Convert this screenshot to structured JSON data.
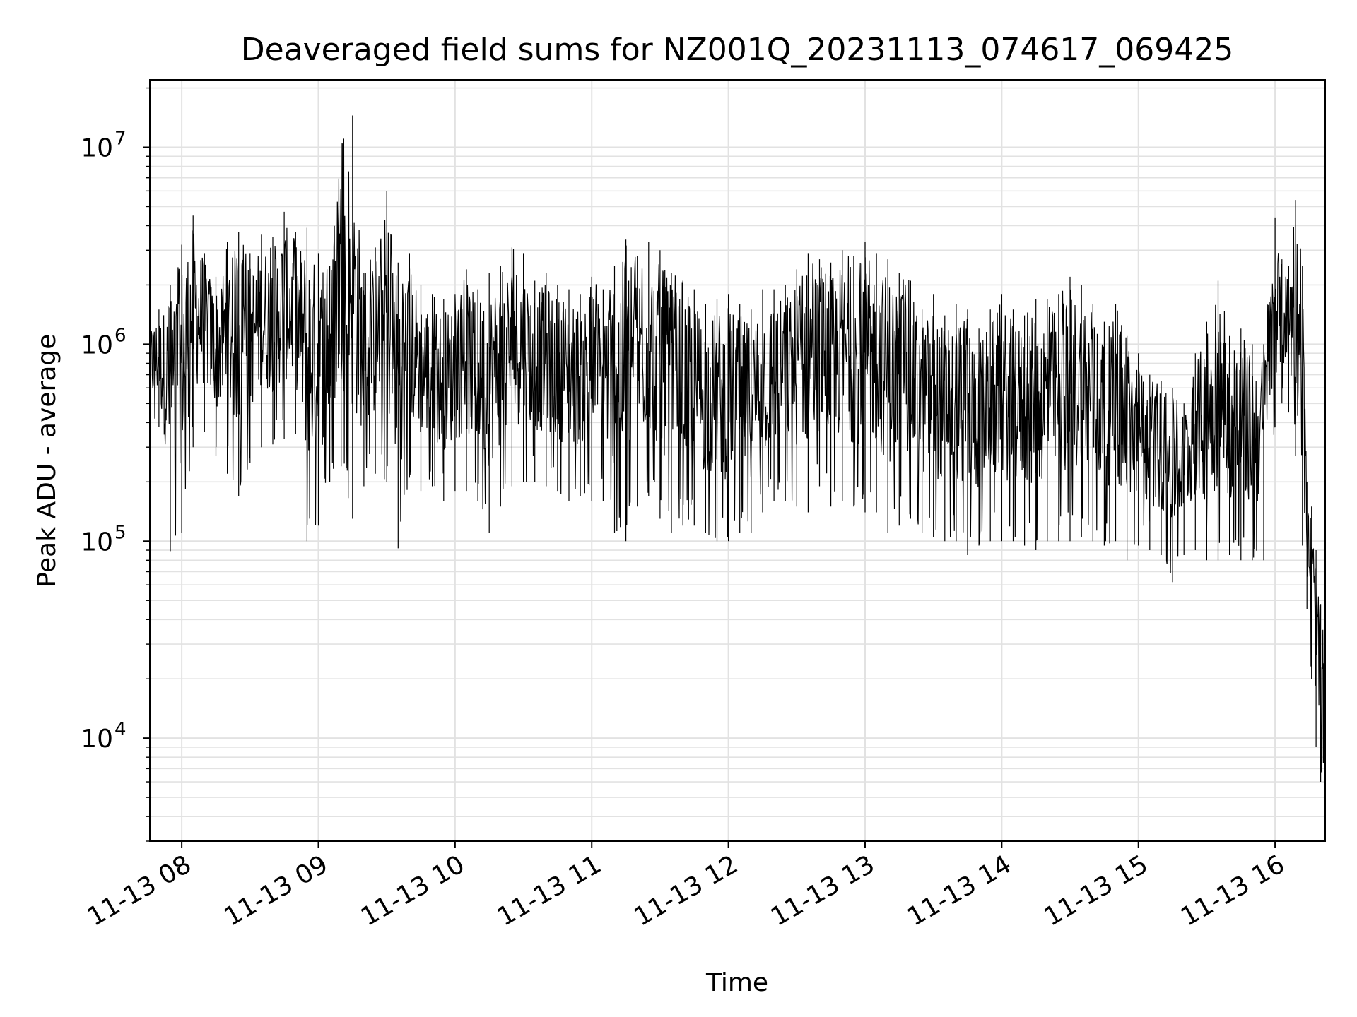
{
  "chart_data": {
    "type": "line",
    "title": "Deaveraged field sums for NZ001Q_20231113_074617_069425",
    "xlabel": "Time",
    "ylabel": "Peak ADU - average",
    "yscale": "log",
    "ylim": [
      3000,
      22000000
    ],
    "xlim": [
      "2023-11-13 07:46",
      "2023-11-13 16:22"
    ],
    "grid": true,
    "line_color": "#000000",
    "x_ticks": [
      {
        "value": "2023-11-13 08:00",
        "label": "11-13 08"
      },
      {
        "value": "2023-11-13 09:00",
        "label": "11-13 09"
      },
      {
        "value": "2023-11-13 10:00",
        "label": "11-13 10"
      },
      {
        "value": "2023-11-13 11:00",
        "label": "11-13 11"
      },
      {
        "value": "2023-11-13 12:00",
        "label": "11-13 12"
      },
      {
        "value": "2023-11-13 13:00",
        "label": "11-13 13"
      },
      {
        "value": "2023-11-13 14:00",
        "label": "11-13 14"
      },
      {
        "value": "2023-11-13 15:00",
        "label": "11-13 15"
      },
      {
        "value": "2023-11-13 16:00",
        "label": "11-13 16"
      }
    ],
    "y_ticks": [
      {
        "value": 10000,
        "base": "10",
        "exp": "4"
      },
      {
        "value": 100000,
        "base": "10",
        "exp": "5"
      },
      {
        "value": 1000000,
        "base": "10",
        "exp": "6"
      },
      {
        "value": 10000000,
        "base": "10",
        "exp": "7"
      }
    ],
    "series": [
      {
        "x": [
          "2023-11-13 07:46",
          "2023-11-13 07:50",
          "2023-11-13 07:55",
          "2023-11-13 08:00",
          "2023-11-13 08:05",
          "2023-11-13 08:10",
          "2023-11-13 08:15",
          "2023-11-13 08:20",
          "2023-11-13 08:25",
          "2023-11-13 08:30",
          "2023-11-13 08:35",
          "2023-11-13 08:40",
          "2023-11-13 08:45",
          "2023-11-13 08:50",
          "2023-11-13 08:55",
          "2023-11-13 09:00",
          "2023-11-13 09:05",
          "2023-11-13 09:10",
          "2023-11-13 09:15",
          "2023-11-13 09:20",
          "2023-11-13 09:25",
          "2023-11-13 09:30",
          "2023-11-13 09:35",
          "2023-11-13 09:40",
          "2023-11-13 09:45",
          "2023-11-13 09:50",
          "2023-11-13 09:55",
          "2023-11-13 10:00",
          "2023-11-13 10:05",
          "2023-11-13 10:10",
          "2023-11-13 10:15",
          "2023-11-13 10:20",
          "2023-11-13 10:25",
          "2023-11-13 10:30",
          "2023-11-13 10:35",
          "2023-11-13 10:40",
          "2023-11-13 10:45",
          "2023-11-13 10:50",
          "2023-11-13 10:55",
          "2023-11-13 11:00",
          "2023-11-13 11:05",
          "2023-11-13 11:10",
          "2023-11-13 11:15",
          "2023-11-13 11:20",
          "2023-11-13 11:25",
          "2023-11-13 11:30",
          "2023-11-13 11:35",
          "2023-11-13 11:40",
          "2023-11-13 11:45",
          "2023-11-13 11:50",
          "2023-11-13 11:55",
          "2023-11-13 12:00",
          "2023-11-13 12:05",
          "2023-11-13 12:10",
          "2023-11-13 12:15",
          "2023-11-13 12:20",
          "2023-11-13 12:25",
          "2023-11-13 12:30",
          "2023-11-13 12:35",
          "2023-11-13 12:40",
          "2023-11-13 12:45",
          "2023-11-13 12:50",
          "2023-11-13 12:55",
          "2023-11-13 13:00",
          "2023-11-13 13:05",
          "2023-11-13 13:10",
          "2023-11-13 13:15",
          "2023-11-13 13:20",
          "2023-11-13 13:25",
          "2023-11-13 13:30",
          "2023-11-13 13:35",
          "2023-11-13 13:40",
          "2023-11-13 13:45",
          "2023-11-13 13:50",
          "2023-11-13 13:55",
          "2023-11-13 14:00",
          "2023-11-13 14:05",
          "2023-11-13 14:10",
          "2023-11-13 14:15",
          "2023-11-13 14:20",
          "2023-11-13 14:25",
          "2023-11-13 14:30",
          "2023-11-13 14:35",
          "2023-11-13 14:40",
          "2023-11-13 14:45",
          "2023-11-13 14:50",
          "2023-11-13 14:55",
          "2023-11-13 15:00",
          "2023-11-13 15:05",
          "2023-11-13 15:10",
          "2023-11-13 15:15",
          "2023-11-13 15:20",
          "2023-11-13 15:25",
          "2023-11-13 15:30",
          "2023-11-13 15:35",
          "2023-11-13 15:40",
          "2023-11-13 15:45",
          "2023-11-13 15:50",
          "2023-11-13 15:55",
          "2023-11-13 16:00",
          "2023-11-13 16:03",
          "2023-11-13 16:06",
          "2023-11-13 16:09",
          "2023-11-13 16:12",
          "2023-11-13 16:14",
          "2023-11-13 16:16",
          "2023-11-13 16:18",
          "2023-11-13 16:20",
          "2023-11-13 16:22"
        ],
        "upper": [
          1400000,
          1500000,
          2000000,
          3200000,
          4500000,
          2900000,
          2200000,
          3300000,
          3700000,
          2900000,
          3600000,
          3500000,
          4700000,
          3700000,
          3900000,
          2900000,
          2500000,
          10500000,
          14500000,
          2300000,
          3100000,
          6000000,
          2600000,
          2900000,
          2000000,
          1800000,
          1700000,
          1800000,
          2400000,
          1900000,
          2300000,
          2500000,
          3100000,
          2900000,
          2100000,
          2300000,
          2000000,
          1900000,
          1800000,
          2200000,
          1900000,
          2500000,
          3400000,
          2800000,
          3300000,
          3000000,
          2300000,
          2100000,
          1900000,
          1600000,
          1700000,
          1800000,
          1600000,
          1500000,
          1900000,
          1900000,
          2000000,
          2400000,
          2900000,
          2700000,
          2600000,
          3000000,
          2800000,
          3300000,
          2900000,
          2700000,
          2300000,
          2100000,
          1500000,
          1800000,
          1400000,
          1600000,
          1500000,
          1200000,
          1500000,
          1800000,
          1500000,
          1400000,
          1700000,
          1700000,
          1800000,
          2200000,
          2000000,
          1600000,
          1300000,
          1600000,
          1100000,
          900000,
          700000,
          650000,
          600000,
          500000,
          900000,
          1300000,
          2100000,
          1100000,
          1200000,
          1000000,
          1000000,
          4400000,
          2700000,
          2500000,
          5400000,
          2500000,
          200000,
          150000,
          90000,
          48000,
          31000
        ],
        "lower": [
          330000,
          380000,
          89000,
          110000,
          300000,
          360000,
          270000,
          220000,
          170000,
          250000,
          300000,
          310000,
          330000,
          350000,
          100000,
          120000,
          200000,
          240000,
          130000,
          190000,
          220000,
          200000,
          92000,
          210000,
          180000,
          190000,
          160000,
          180000,
          180000,
          160000,
          110000,
          150000,
          190000,
          200000,
          200000,
          190000,
          180000,
          160000,
          170000,
          160000,
          160000,
          110000,
          100000,
          150000,
          170000,
          130000,
          110000,
          120000,
          120000,
          110000,
          100000,
          100000,
          110000,
          110000,
          140000,
          160000,
          160000,
          150000,
          140000,
          190000,
          150000,
          160000,
          150000,
          140000,
          140000,
          110000,
          120000,
          130000,
          110000,
          105000,
          100000,
          100000,
          85000,
          95000,
          100000,
          100000,
          100000,
          95000,
          90000,
          100000,
          100000,
          100000,
          105000,
          100000,
          95000,
          100000,
          80000,
          95000,
          90000,
          85000,
          62000,
          85000,
          90000,
          80000,
          80000,
          85000,
          80000,
          80000,
          80000,
          380000,
          500000,
          450000,
          270000,
          95000,
          45000,
          20000,
          9000,
          6000,
          5000
        ]
      }
    ]
  }
}
